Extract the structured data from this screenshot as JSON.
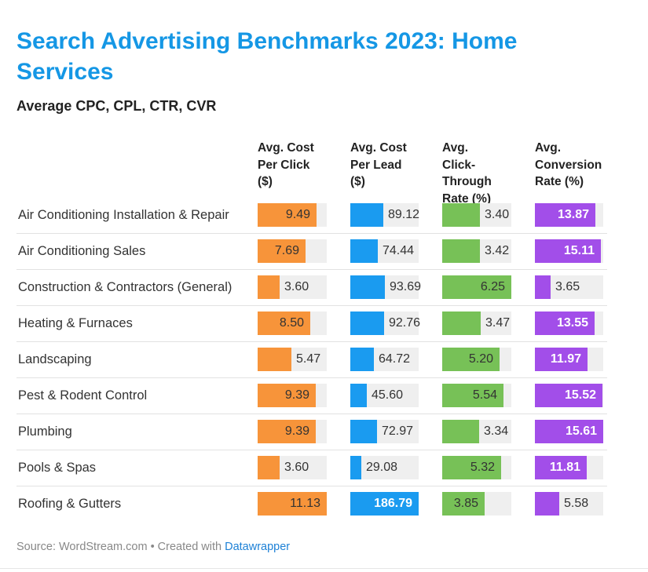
{
  "title": "Search Advertising Benchmarks 2023: Home Services",
  "subtitle": "Average CPC, CPL, CTR, CVR",
  "source_prefix": "Source: WordStream.com • Created with",
  "source_link": "Datawrapper",
  "colors": {
    "cpc": "#f7943a",
    "cpl": "#1a9bf0",
    "ctr": "#77c157",
    "cvr": "#a24ee9",
    "background_track": "#efefef",
    "title": "#1597e5"
  },
  "chart_data": {
    "type": "table",
    "title": "Search Advertising Benchmarks 2023: Home Services",
    "subtitle": "Average CPC, CPL, CTR, CVR",
    "columns": [
      {
        "key": "cpc",
        "label": "Avg. Cost Per Click ($)",
        "max": 11.13
      },
      {
        "key": "cpl",
        "label": "Avg. Cost Per Lead ($)",
        "max": 186.79
      },
      {
        "key": "ctr",
        "label": "Avg. Click-Through Rate (%)",
        "max": 6.25
      },
      {
        "key": "cvr",
        "label": "Avg. Conversion Rate (%)",
        "max": 15.61
      }
    ],
    "rows": [
      {
        "category": "Air Conditioning Installation & Repair",
        "cpc": 9.49,
        "cpl": 89.12,
        "ctr": 3.4,
        "cvr": 13.87
      },
      {
        "category": "Air Conditioning Sales",
        "cpc": 7.69,
        "cpl": 74.44,
        "ctr": 3.42,
        "cvr": 15.11
      },
      {
        "category": "Construction & Contractors (General)",
        "cpc": 3.6,
        "cpl": 93.69,
        "ctr": 6.25,
        "cvr": 3.65
      },
      {
        "category": "Heating & Furnaces",
        "cpc": 8.5,
        "cpl": 92.76,
        "ctr": 3.47,
        "cvr": 13.55
      },
      {
        "category": "Landscaping",
        "cpc": 5.47,
        "cpl": 64.72,
        "ctr": 5.2,
        "cvr": 11.97
      },
      {
        "category": "Pest & Rodent Control",
        "cpc": 9.39,
        "cpl": 45.6,
        "ctr": 5.54,
        "cvr": 15.52
      },
      {
        "category": "Plumbing",
        "cpc": 9.39,
        "cpl": 72.97,
        "ctr": 3.34,
        "cvr": 15.61
      },
      {
        "category": "Pools & Spas",
        "cpc": 3.6,
        "cpl": 29.08,
        "ctr": 5.32,
        "cvr": 11.81
      },
      {
        "category": "Roofing & Gutters",
        "cpc": 11.13,
        "cpl": 186.79,
        "ctr": 3.85,
        "cvr": 5.58
      }
    ]
  }
}
